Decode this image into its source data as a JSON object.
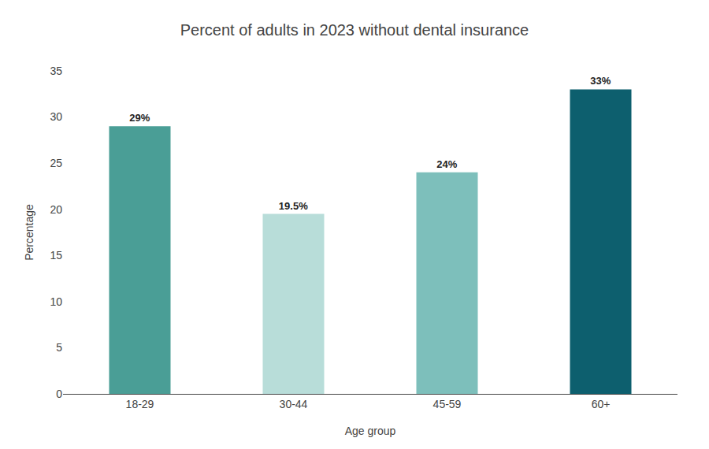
{
  "chart_data": {
    "type": "bar",
    "title": "Percent of adults in 2023 without dental insurance",
    "xlabel": "Age group",
    "ylabel": "Percentage",
    "categories": [
      "18-29",
      "30-44",
      "45-59",
      "60+"
    ],
    "values": [
      29,
      19.5,
      24,
      33
    ],
    "value_labels": [
      "29%",
      "19.5%",
      "24%",
      "33%"
    ],
    "data_labels": true,
    "colors": [
      "#4a9e96",
      "#b8ddd9",
      "#7dbfbb",
      "#0d5f6e"
    ],
    "ylim": [
      0,
      35
    ],
    "yticks": [
      0,
      5,
      10,
      15,
      20,
      25,
      30,
      35
    ],
    "grid": false
  }
}
